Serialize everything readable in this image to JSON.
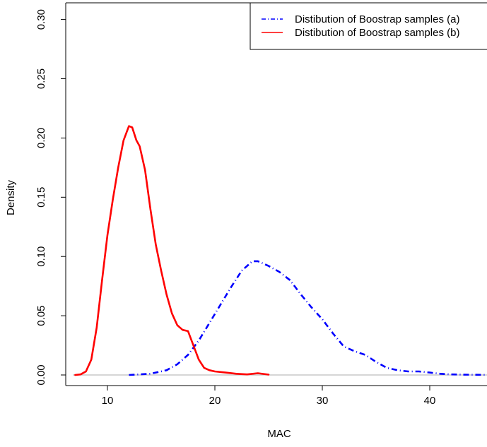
{
  "chart_data": {
    "type": "line",
    "title": "",
    "xlabel": "MAC",
    "ylabel": "Density",
    "xlim": [
      7,
      45.5
    ],
    "ylim": [
      0,
      0.3
    ],
    "x_ticks": [
      10,
      20,
      30,
      40
    ],
    "y_ticks": [
      0.0,
      0.05,
      0.1,
      0.15,
      0.2,
      0.25,
      0.3
    ],
    "x_tick_labels": [
      "10",
      "20",
      "30",
      "40"
    ],
    "y_tick_labels": [
      "0.00",
      "0.05",
      "0.10",
      "0.15",
      "0.20",
      "0.25",
      "0.30"
    ],
    "grid": false,
    "baseline": 0,
    "baseline_color": "#bebebe",
    "legend_position": "top-right",
    "series": [
      {
        "name": "Distibution of Boostrap samples (a)",
        "color": "#0000ff",
        "line_style": "dot-dash",
        "x": [
          12.0,
          14.0,
          15.5,
          16.5,
          17.5,
          18.5,
          19.5,
          20.5,
          21.5,
          22.5,
          23.5,
          24.0,
          25.0,
          26.0,
          27.0,
          28.0,
          29.0,
          30.0,
          31.0,
          32.0,
          33.0,
          34.0,
          35.0,
          36.0,
          37.0,
          38.0,
          39.0,
          40.0,
          41.0,
          42.0,
          43.0,
          44.0,
          45.5
        ],
        "y": [
          0.0,
          0.001,
          0.004,
          0.009,
          0.017,
          0.029,
          0.044,
          0.059,
          0.074,
          0.088,
          0.096,
          0.096,
          0.092,
          0.087,
          0.08,
          0.068,
          0.057,
          0.047,
          0.035,
          0.024,
          0.02,
          0.017,
          0.011,
          0.006,
          0.004,
          0.003,
          0.003,
          0.002,
          0.001,
          0.0005,
          0.0003,
          0.0002,
          0.0001
        ]
      },
      {
        "name": "Distibution of Boostrap samples (b)",
        "color": "#ff0000",
        "line_style": "solid",
        "x": [
          7.0,
          7.5,
          8.0,
          8.5,
          9.0,
          9.5,
          10.0,
          10.5,
          11.0,
          11.5,
          12.0,
          12.3,
          12.7,
          13.0,
          13.5,
          14.0,
          14.5,
          15.0,
          15.5,
          16.0,
          16.5,
          17.0,
          17.5,
          18.0,
          18.5,
          19.0,
          19.5,
          20.0,
          21.0,
          22.0,
          23.0,
          24.0,
          25.0
        ],
        "y": [
          0.0,
          0.0005,
          0.003,
          0.013,
          0.04,
          0.08,
          0.118,
          0.148,
          0.175,
          0.198,
          0.21,
          0.209,
          0.198,
          0.193,
          0.173,
          0.14,
          0.11,
          0.088,
          0.068,
          0.052,
          0.042,
          0.038,
          0.037,
          0.025,
          0.013,
          0.006,
          0.004,
          0.003,
          0.002,
          0.001,
          0.0005,
          0.0015,
          0.0003
        ]
      }
    ]
  }
}
